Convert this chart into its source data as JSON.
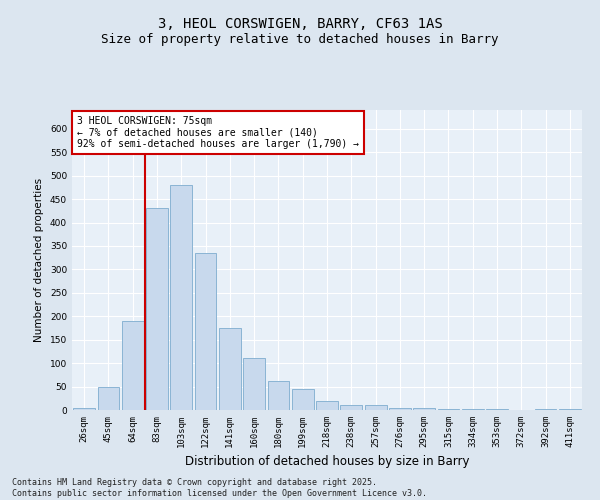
{
  "title1": "3, HEOL CORSWIGEN, BARRY, CF63 1AS",
  "title2": "Size of property relative to detached houses in Barry",
  "xlabel": "Distribution of detached houses by size in Barry",
  "ylabel": "Number of detached properties",
  "categories": [
    "26sqm",
    "45sqm",
    "64sqm",
    "83sqm",
    "103sqm",
    "122sqm",
    "141sqm",
    "160sqm",
    "180sqm",
    "199sqm",
    "218sqm",
    "238sqm",
    "257sqm",
    "276sqm",
    "295sqm",
    "315sqm",
    "334sqm",
    "353sqm",
    "372sqm",
    "392sqm",
    "411sqm"
  ],
  "values": [
    5,
    50,
    190,
    430,
    480,
    335,
    175,
    110,
    62,
    45,
    20,
    10,
    10,
    5,
    5,
    3,
    2,
    2,
    1,
    3,
    2
  ],
  "bar_color": "#c8d9ed",
  "bar_edge_color": "#8ab4d4",
  "bar_linewidth": 0.7,
  "vline_color": "#cc0000",
  "vline_x_index": 2,
  "annotation_text": "3 HEOL CORSWIGEN: 75sqm\n← 7% of detached houses are smaller (140)\n92% of semi-detached houses are larger (1,790) →",
  "annotation_box_color": "#ffffff",
  "annotation_box_edge": "#cc0000",
  "ylim": [
    0,
    640
  ],
  "yticks": [
    0,
    50,
    100,
    150,
    200,
    250,
    300,
    350,
    400,
    450,
    500,
    550,
    600
  ],
  "fig_bg_color": "#dce6f0",
  "plot_bg_color": "#e8f0f8",
  "footer": "Contains HM Land Registry data © Crown copyright and database right 2025.\nContains public sector information licensed under the Open Government Licence v3.0.",
  "title_fontsize": 10,
  "subtitle_fontsize": 9,
  "tick_fontsize": 6.5,
  "ylabel_fontsize": 7.5,
  "xlabel_fontsize": 8.5,
  "annotation_fontsize": 7,
  "footer_fontsize": 6
}
